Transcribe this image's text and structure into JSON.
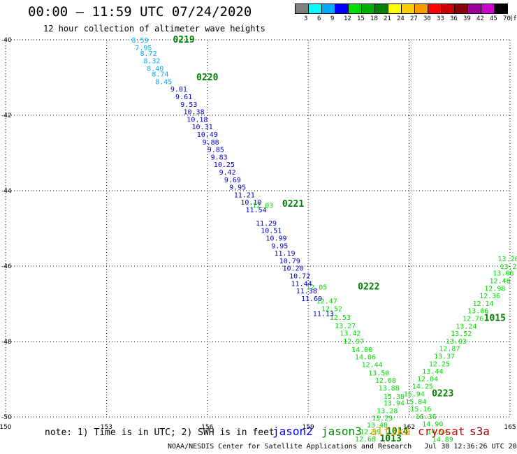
{
  "header": {
    "title": "00:00 — 11:59 UTC 07/24/2020",
    "subtitle": "12 hour collection of altimeter wave heights"
  },
  "colorbar": {
    "bins": [
      {
        "label": "3",
        "color": "#7f7f7f"
      },
      {
        "label": "6",
        "color": "#00ffff"
      },
      {
        "label": "9",
        "color": "#00aaff"
      },
      {
        "label": "12",
        "color": "#0000ff"
      },
      {
        "label": "15",
        "color": "#00dd00"
      },
      {
        "label": "18",
        "color": "#00b000"
      },
      {
        "label": "21",
        "color": "#008000"
      },
      {
        "label": "24",
        "color": "#ffff00"
      },
      {
        "label": "27",
        "color": "#ffcc00"
      },
      {
        "label": "30",
        "color": "#ff9900"
      },
      {
        "label": "33",
        "color": "#ff0000"
      },
      {
        "label": "36",
        "color": "#cc0000"
      },
      {
        "label": "39",
        "color": "#880000"
      },
      {
        "label": "42",
        "color": "#990099"
      },
      {
        "label": "45",
        "color": "#cc00cc"
      },
      {
        "label": "70",
        "color": "#000000"
      }
    ],
    "unit": "(ft)"
  },
  "note": "note: 1) Time is in UTC; 2) SWH is in feet",
  "satellites": [
    {
      "name": "jason2",
      "color": "#0000ee"
    },
    {
      "name": "jason3",
      "color": "#008800"
    },
    {
      "name": "altika",
      "color": "#ff9900"
    },
    {
      "name": "cryosat",
      "color": "#dd0000"
    },
    {
      "name": "s3a",
      "color": "#880000"
    }
  ],
  "footer": "NOAA/NESDIS Center for Satellite Applications and Research   Jul 30 12:36:26 UTC 2020",
  "chart_data": {
    "type": "scatter",
    "xlim": [
      150,
      165
    ],
    "ylim": [
      -50,
      -40
    ],
    "xticks": [
      "150",
      "153",
      "156",
      "159",
      "162",
      "165"
    ],
    "yticks": [
      "-40",
      "-42",
      "-44",
      "-46",
      "-48",
      "-50"
    ],
    "grid": true,
    "series": [
      {
        "color": "#00aaff",
        "points": [
          {
            "x": 154.0,
            "y": -40.0,
            "label": "8.59"
          },
          {
            "x": 154.1,
            "y": -40.2,
            "label": "7.95"
          },
          {
            "x": 154.25,
            "y": -40.35,
            "label": "8.72"
          },
          {
            "x": 154.35,
            "y": -40.55,
            "label": "8.32"
          },
          {
            "x": 154.45,
            "y": -40.75,
            "label": "8.40"
          },
          {
            "x": 154.6,
            "y": -40.9,
            "label": "8.74"
          },
          {
            "x": 154.7,
            "y": -41.1,
            "label": "8.45"
          }
        ]
      },
      {
        "color": "#00dd00",
        "points": [
          {
            "x": 157.65,
            "y": -44.38,
            "label": "12.03"
          },
          {
            "x": 159.25,
            "y": -46.55,
            "label": "12.05"
          },
          {
            "x": 159.55,
            "y": -46.92,
            "label": "12.47"
          },
          {
            "x": 159.7,
            "y": -47.12,
            "label": "12.52"
          },
          {
            "x": 159.95,
            "y": -47.35,
            "label": "12.53"
          },
          {
            "x": 160.1,
            "y": -47.57,
            "label": "13.27"
          },
          {
            "x": 160.25,
            "y": -47.77,
            "label": "13.42"
          },
          {
            "x": 160.35,
            "y": -47.98,
            "label": "12.97"
          },
          {
            "x": 160.6,
            "y": -48.2,
            "label": "14.00"
          },
          {
            "x": 160.7,
            "y": -48.4,
            "label": "14.06"
          },
          {
            "x": 160.9,
            "y": -48.6,
            "label": "12.44"
          },
          {
            "x": 161.1,
            "y": -48.82,
            "label": "13.50"
          },
          {
            "x": 161.3,
            "y": -49.02,
            "label": "12.68"
          },
          {
            "x": 161.4,
            "y": -49.22,
            "label": "13.88"
          },
          {
            "x": 161.55,
            "y": -49.44,
            "label": "15.38"
          },
          {
            "x": 161.55,
            "y": -49.62,
            "label": "13.94"
          },
          {
            "x": 161.35,
            "y": -49.82,
            "label": "13.28"
          },
          {
            "x": 161.2,
            "y": -50.02,
            "label": "13.29"
          },
          {
            "x": 161.05,
            "y": -50.2,
            "label": "13.48"
          },
          {
            "x": 160.85,
            "y": -50.38,
            "label": "12.99"
          },
          {
            "x": 160.7,
            "y": -50.57,
            "label": "12.68"
          },
          {
            "x": 164.95,
            "y": -45.8,
            "label": "13.26"
          },
          {
            "x": 164.95,
            "y": -46.0,
            "label": "13.2"
          },
          {
            "x": 164.8,
            "y": -46.18,
            "label": "13.06"
          },
          {
            "x": 164.7,
            "y": -46.38,
            "label": "12.48"
          },
          {
            "x": 164.55,
            "y": -46.58,
            "label": "12.98"
          },
          {
            "x": 164.4,
            "y": -46.78,
            "label": "12.36"
          },
          {
            "x": 164.2,
            "y": -46.98,
            "label": "12.14"
          },
          {
            "x": 164.05,
            "y": -47.18,
            "label": "13.06"
          },
          {
            "x": 163.9,
            "y": -47.38,
            "label": "12.76"
          },
          {
            "x": 163.7,
            "y": -47.58,
            "label": "13.24"
          },
          {
            "x": 163.55,
            "y": -47.78,
            "label": "13.52"
          },
          {
            "x": 163.4,
            "y": -47.98,
            "label": "13.03"
          },
          {
            "x": 163.2,
            "y": -48.18,
            "label": "12.87"
          },
          {
            "x": 163.05,
            "y": -48.38,
            "label": "13.37"
          },
          {
            "x": 162.9,
            "y": -48.58,
            "label": "12.25"
          },
          {
            "x": 162.7,
            "y": -48.78,
            "label": "13.44"
          },
          {
            "x": 162.55,
            "y": -48.98,
            "label": "12.04"
          },
          {
            "x": 162.4,
            "y": -49.18,
            "label": "14.25"
          },
          {
            "x": 162.15,
            "y": -49.38,
            "label": "15.94"
          },
          {
            "x": 162.2,
            "y": -49.58,
            "label": "15.84"
          },
          {
            "x": 162.35,
            "y": -49.78,
            "label": "15.16"
          },
          {
            "x": 162.5,
            "y": -49.98,
            "label": "16.36"
          },
          {
            "x": 162.7,
            "y": -50.18,
            "label": "14.90"
          },
          {
            "x": 162.85,
            "y": -50.38,
            "label": "14.94"
          },
          {
            "x": 163.0,
            "y": -50.58,
            "label": "14.89"
          }
        ]
      },
      {
        "color": "#0000cc",
        "points": [
          {
            "x": 155.15,
            "y": -41.3,
            "label": "9.01"
          },
          {
            "x": 155.3,
            "y": -41.5,
            "label": "9.61"
          },
          {
            "x": 155.45,
            "y": -41.7,
            "label": "9.53"
          },
          {
            "x": 155.6,
            "y": -41.9,
            "label": "10.38"
          },
          {
            "x": 155.7,
            "y": -42.1,
            "label": "10.18"
          },
          {
            "x": 155.85,
            "y": -42.3,
            "label": "10.31"
          },
          {
            "x": 156.0,
            "y": -42.5,
            "label": "10.49"
          },
          {
            "x": 156.1,
            "y": -42.7,
            "label": "9.88"
          },
          {
            "x": 156.25,
            "y": -42.9,
            "label": "9.85"
          },
          {
            "x": 156.35,
            "y": -43.1,
            "label": "9.83"
          },
          {
            "x": 156.5,
            "y": -43.3,
            "label": "10.25"
          },
          {
            "x": 156.6,
            "y": -43.5,
            "label": "9.42"
          },
          {
            "x": 156.75,
            "y": -43.7,
            "label": "9.69"
          },
          {
            "x": 156.9,
            "y": -43.9,
            "label": "9.95"
          },
          {
            "x": 157.1,
            "y": -44.1,
            "label": "11.21"
          },
          {
            "x": 157.3,
            "y": -44.3,
            "label": "10.10"
          },
          {
            "x": 157.45,
            "y": -44.5,
            "label": "11.54"
          },
          {
            "x": 157.75,
            "y": -44.85,
            "label": "11.29"
          },
          {
            "x": 157.9,
            "y": -45.05,
            "label": "10.51"
          },
          {
            "x": 158.05,
            "y": -45.25,
            "label": "10.99"
          },
          {
            "x": 158.15,
            "y": -45.45,
            "label": "9.95"
          },
          {
            "x": 158.3,
            "y": -45.65,
            "label": "11.19"
          },
          {
            "x": 158.45,
            "y": -45.85,
            "label": "10.79"
          },
          {
            "x": 158.55,
            "y": -46.05,
            "label": "10.20"
          },
          {
            "x": 158.75,
            "y": -46.25,
            "label": "10.72"
          },
          {
            "x": 158.8,
            "y": -46.45,
            "label": "11.44"
          },
          {
            "x": 158.95,
            "y": -46.65,
            "label": "11.38"
          },
          {
            "x": 159.1,
            "y": -46.85,
            "label": "11.69"
          },
          {
            "x": 159.45,
            "y": -47.25,
            "label": "11.13"
          }
        ]
      }
    ],
    "annotations": [
      {
        "x": 155.3,
        "y": -40.0,
        "text": "0219",
        "color": "#008000"
      },
      {
        "x": 156.0,
        "y": -41.0,
        "text": "0220",
        "color": "#008000"
      },
      {
        "x": 158.55,
        "y": -44.35,
        "text": "0221",
        "color": "#008000"
      },
      {
        "x": 160.8,
        "y": -46.55,
        "text": "0222",
        "color": "#008000"
      },
      {
        "x": 163.0,
        "y": -49.38,
        "text": "0223",
        "color": "#008000"
      },
      {
        "x": 164.55,
        "y": -47.38,
        "text": "1015",
        "color": "#008000"
      },
      {
        "x": 161.65,
        "y": -50.38,
        "text": "1014",
        "color": "#008000"
      },
      {
        "x": 161.45,
        "y": -50.57,
        "text": "1013",
        "color": "#008000"
      }
    ]
  }
}
